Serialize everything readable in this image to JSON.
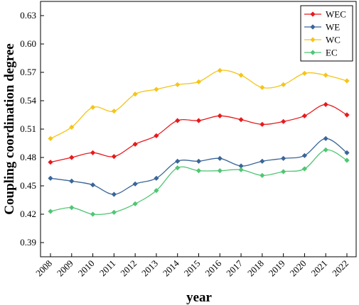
{
  "chart_data": {
    "type": "line",
    "xlabel": "year",
    "ylabel": "Coupling coordination degree",
    "x": [
      "2008",
      "2009",
      "2010",
      "2011",
      "2012",
      "2013",
      "2014",
      "2015",
      "2016",
      "2017",
      "2018",
      "2019",
      "2020",
      "2021",
      "2022"
    ],
    "yticks": [
      "0.39",
      "0.42",
      "0.45",
      "0.48",
      "0.51",
      "0.54",
      "0.57",
      "0.60",
      "0.63"
    ],
    "ylim": [
      0.375,
      0.645
    ],
    "legend_position": "top-right",
    "series": [
      {
        "name": "WEC",
        "color": "#e8191c",
        "values": [
          0.475,
          0.48,
          0.485,
          0.481,
          0.494,
          0.503,
          0.519,
          0.519,
          0.524,
          0.52,
          0.515,
          0.518,
          0.524,
          0.536,
          0.525
        ]
      },
      {
        "name": "WE",
        "color": "#3a6598",
        "values": [
          0.458,
          0.455,
          0.451,
          0.441,
          0.452,
          0.458,
          0.476,
          0.476,
          0.479,
          0.471,
          0.476,
          0.479,
          0.482,
          0.5,
          0.485
        ]
      },
      {
        "name": "WC",
        "color": "#f5c518",
        "values": [
          0.5,
          0.512,
          0.533,
          0.529,
          0.547,
          0.552,
          0.557,
          0.56,
          0.572,
          0.567,
          0.554,
          0.557,
          0.569,
          0.567,
          0.561
        ]
      },
      {
        "name": "EC",
        "color": "#4fc672",
        "values": [
          0.423,
          0.427,
          0.42,
          0.422,
          0.431,
          0.445,
          0.469,
          0.466,
          0.466,
          0.467,
          0.461,
          0.465,
          0.468,
          0.488,
          0.477
        ]
      }
    ]
  }
}
